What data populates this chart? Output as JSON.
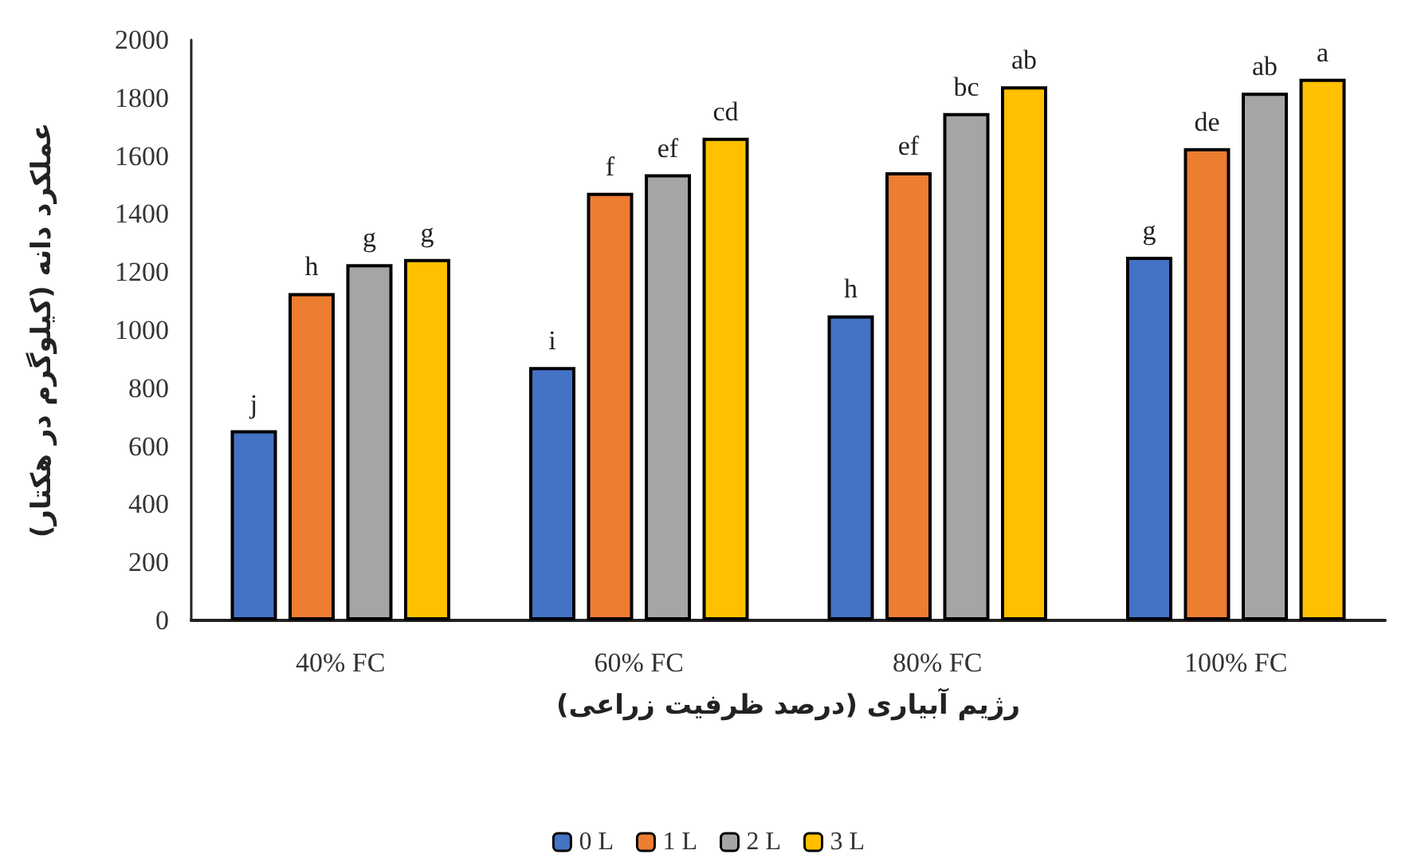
{
  "chart_data": {
    "type": "bar",
    "xlabel": "رژیم آبیاری (درصد ظرفیت زراعی)",
    "ylabel": "عملکرد دانه (کیلوگرم در هکتار)",
    "categories": [
      "40% FC",
      "60% FC",
      "80% FC",
      "100% FC"
    ],
    "series": [
      {
        "name": "0 L",
        "color": "#4472c4",
        "values": [
          655,
          873,
          1051,
          1253
        ],
        "value_labels": [
          "j",
          "i",
          "h",
          "g"
        ]
      },
      {
        "name": "1 L",
        "color": "#ed7d31",
        "values": [
          1128,
          1473,
          1544,
          1627
        ],
        "value_labels": [
          "h",
          "f",
          "ef",
          "de"
        ]
      },
      {
        "name": "2 L",
        "color": "#a5a5a5",
        "values": [
          1227,
          1537,
          1748,
          1818
        ],
        "value_labels": [
          "g",
          "ef",
          "bc",
          "ab"
        ]
      },
      {
        "name": "3 L",
        "color": "#ffc000",
        "values": [
          1245,
          1663,
          1840,
          1866
        ],
        "value_labels": [
          "g",
          "cd",
          "ab",
          "a"
        ]
      }
    ],
    "ylim": [
      0,
      2000
    ],
    "yticks": [
      0,
      200,
      400,
      600,
      800,
      1000,
      1200,
      1400,
      1600,
      1800,
      2000
    ],
    "grid": false,
    "legend": "bottom"
  }
}
